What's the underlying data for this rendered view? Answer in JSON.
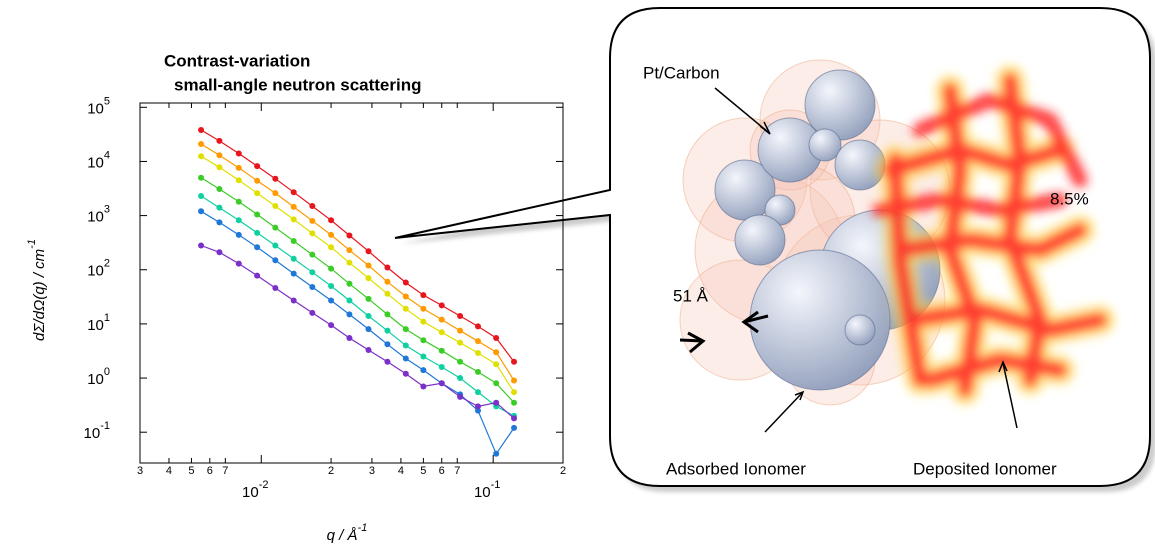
{
  "chart_data": {
    "type": "line",
    "title": [
      "Contrast-variation",
      "small-angle neutron scattering"
    ],
    "ylabel": "dΣ/dΩ(q) / cm",
    "ylabel_exp": "-1",
    "xlabel": "q / Å",
    "xlabel_exp": "-1",
    "xlog": true,
    "ylog": true,
    "xlim": [
      0.003,
      0.2
    ],
    "ylim": [
      0.027,
      120000
    ],
    "xticks": [
      {
        "value": 0.003,
        "label": "3"
      },
      {
        "value": 0.004,
        "label": "4"
      },
      {
        "value": 0.005,
        "label": "5"
      },
      {
        "value": 0.006,
        "label": "6"
      },
      {
        "value": 0.007,
        "label": "7"
      },
      {
        "value": 0.01,
        "label": "10",
        "exp": "-2"
      },
      {
        "value": 0.02,
        "label": "2"
      },
      {
        "value": 0.03,
        "label": "3"
      },
      {
        "value": 0.04,
        "label": "4"
      },
      {
        "value": 0.05,
        "label": "5"
      },
      {
        "value": 0.06,
        "label": "6"
      },
      {
        "value": 0.07,
        "label": "7"
      },
      {
        "value": 0.1,
        "label": "10",
        "exp": "-1"
      },
      {
        "value": 0.2,
        "label": "2"
      }
    ],
    "yticks": [
      {
        "value": 0.1,
        "label": "10",
        "exp": "-1"
      },
      {
        "value": 1,
        "label": "10",
        "exp": "0"
      },
      {
        "value": 10,
        "label": "10",
        "exp": "1"
      },
      {
        "value": 100,
        "label": "10",
        "exp": "2"
      },
      {
        "value": 1000,
        "label": "10",
        "exp": "3"
      },
      {
        "value": 10000,
        "label": "10",
        "exp": "4"
      },
      {
        "value": 100000,
        "label": "10",
        "exp": "5"
      }
    ],
    "x": [
      0.0055,
      0.0066,
      0.008,
      0.0096,
      0.0115,
      0.0138,
      0.0166,
      0.02,
      0.024,
      0.029,
      0.035,
      0.042,
      0.05,
      0.06,
      0.072,
      0.086,
      0.103,
      0.123
    ],
    "series": [
      {
        "color": "#e8141e",
        "values": [
          38000,
          24000,
          14000,
          8200,
          4800,
          2700,
          1500,
          820,
          430,
          220,
          110,
          58,
          34,
          22,
          14,
          9,
          5.5,
          2
        ]
      },
      {
        "color": "#ff9a00",
        "values": [
          21000,
          13000,
          7600,
          4400,
          2600,
          1450,
          800,
          440,
          230,
          120,
          60,
          32,
          19,
          12,
          7.5,
          4.8,
          3,
          0.9
        ]
      },
      {
        "color": "#e0e000",
        "values": [
          12500,
          7800,
          4500,
          2600,
          1500,
          850,
          470,
          260,
          135,
          70,
          36,
          19,
          11,
          7,
          4.5,
          2.9,
          1.8,
          0.55
        ]
      },
      {
        "color": "#3ccc28",
        "values": [
          5000,
          3100,
          1800,
          1050,
          600,
          340,
          190,
          105,
          55,
          29,
          15,
          8,
          5,
          3.2,
          2,
          1.3,
          0.8,
          0.35
        ]
      },
      {
        "color": "#10d0a0",
        "values": [
          2300,
          1400,
          820,
          480,
          280,
          160,
          90,
          50,
          27,
          14,
          7.5,
          4,
          2.5,
          1.6,
          1,
          0.55,
          0.3,
          0.2
        ]
      },
      {
        "color": "#1f78d8",
        "values": [
          1200,
          750,
          440,
          260,
          150,
          85,
          48,
          27,
          15,
          8,
          4.2,
          2.3,
          1.4,
          0.8,
          0.5,
          0.25,
          0.04,
          0.12
        ]
      },
      {
        "color": "#7b30c8",
        "values": [
          280,
          210,
          130,
          78,
          46,
          27,
          16,
          9.5,
          5.5,
          3.3,
          2,
          1.2,
          0.7,
          0.8,
          0.45,
          0.3,
          0.35,
          0.18
        ]
      }
    ]
  },
  "diagram": {
    "labels": [
      "Pt/Carbon",
      "8.5%",
      "51 Å",
      "Adsorbed Ionomer",
      "Deposited Ionomer"
    ]
  }
}
